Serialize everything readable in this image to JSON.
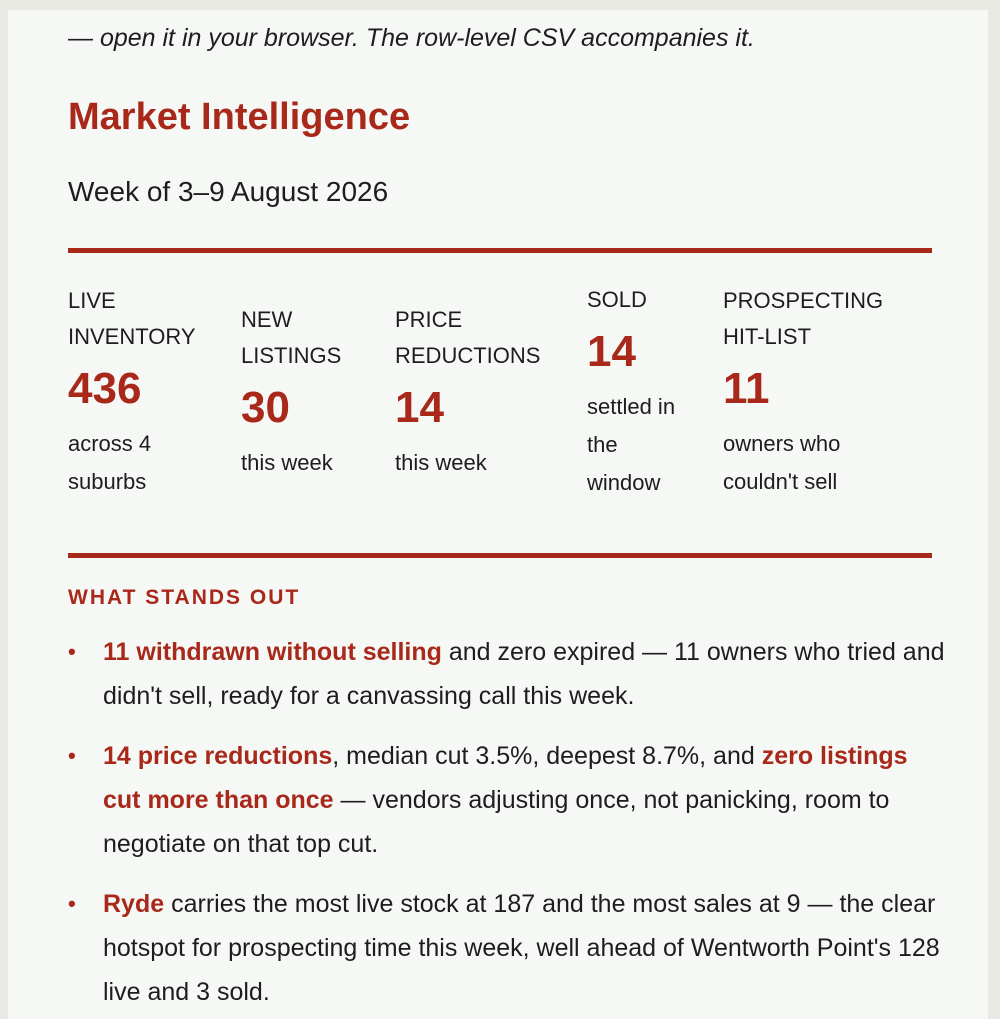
{
  "intro": "— open it in your browser. The row-level CSV accompanies it.",
  "title": "Market Intelligence",
  "week": "Week of 3–9 August 2026",
  "stats": [
    {
      "label_lines": [
        "LIVE",
        "INVENTORY"
      ],
      "value": "436",
      "sub_lines": [
        "across 4",
        "suburbs"
      ]
    },
    {
      "label_lines": [
        "NEW",
        "LISTINGS"
      ],
      "value": "30",
      "sub_lines": [
        "this week"
      ]
    },
    {
      "label_lines": [
        "PRICE",
        "REDUCTIONS"
      ],
      "value": "14",
      "sub_lines": [
        "this week"
      ]
    },
    {
      "label_lines": [
        "SOLD"
      ],
      "value": "14",
      "sub_lines": [
        "settled in",
        "the",
        "window"
      ]
    },
    {
      "label_lines": [
        "PROSPECTING",
        "HIT-LIST"
      ],
      "value": "11",
      "sub_lines": [
        "owners who",
        "couldn't sell"
      ]
    }
  ],
  "section_heading": "WHAT STANDS OUT",
  "bullets": [
    {
      "segments": [
        {
          "text": "11 withdrawn without selling",
          "highlight": true
        },
        {
          "text": " and zero expired — 11 owners who tried and didn't sell, ready for a canvassing call this week.",
          "highlight": false
        }
      ]
    },
    {
      "segments": [
        {
          "text": "14 price reductions",
          "highlight": true
        },
        {
          "text": ", median cut 3.5%, deepest 8.7%, and ",
          "highlight": false
        },
        {
          "text": "zero listings cut more than once",
          "highlight": true
        },
        {
          "text": " — vendors adjusting once, not panicking, room to negotiate on that top cut.",
          "highlight": false
        }
      ]
    },
    {
      "segments": [
        {
          "text": "Ryde",
          "highlight": true
        },
        {
          "text": " carries the most live stock at 187 and the most sales at 9 — the clear hotspot for prospecting time this week, well ahead of Wentworth Point's 128 live and 3 sold.",
          "highlight": false
        }
      ]
    }
  ],
  "colors": {
    "accent": "#a8281a",
    "text": "#1d1d1d",
    "background": "#f6f8f6"
  }
}
